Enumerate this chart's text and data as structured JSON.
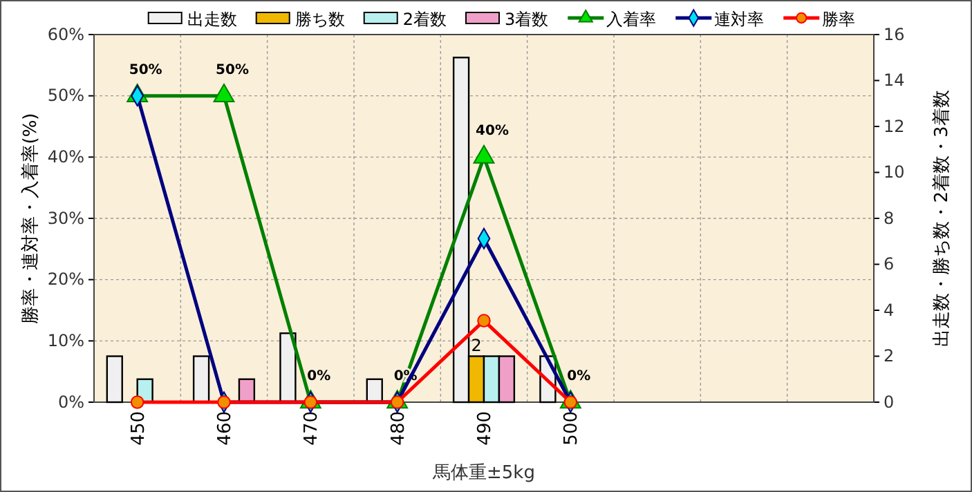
{
  "chart_data": {
    "type": "bar",
    "xlabel": "馬体重±5kg",
    "ylabel": "勝率・連対率・入着率(%)",
    "y2label": "出走数・勝ち数・2着数・3着数",
    "categories": [
      "450",
      "460",
      "470",
      "480",
      "490",
      "500",
      null,
      null,
      null
    ],
    "series": [
      {
        "name": "出走数",
        "axis": "y2",
        "color": "#f0f0f0",
        "values": [
          2,
          2,
          3,
          1,
          15,
          2,
          null,
          null,
          null
        ]
      },
      {
        "name": "勝ち数",
        "axis": "y2",
        "color": "#f0b800",
        "values": [
          0,
          0,
          0,
          0,
          2,
          0,
          null,
          null,
          null
        ],
        "value_labels": [
          null,
          null,
          null,
          null,
          "2",
          null,
          null,
          null,
          null
        ]
      },
      {
        "name": "2着数",
        "axis": "y2",
        "color": "#b8f0f0",
        "values": [
          1,
          0,
          0,
          0,
          2,
          0,
          null,
          null,
          null
        ]
      },
      {
        "name": "3着数",
        "axis": "y2",
        "color": "#f0a0c8",
        "values": [
          0,
          1,
          0,
          0,
          2,
          0,
          null,
          null,
          null
        ]
      },
      {
        "name": "入着率",
        "type": "line",
        "axis": "y",
        "color": "#008000",
        "marker": "triangle",
        "values": [
          50,
          50,
          0,
          0,
          40,
          0,
          null,
          null,
          null
        ],
        "value_labels": [
          "50%",
          "50%",
          "0%",
          "0%",
          "40%",
          "0%",
          null,
          null,
          null
        ]
      },
      {
        "name": "連対率",
        "type": "line",
        "axis": "y",
        "color": "#000080",
        "marker": "diamond",
        "values": [
          50,
          0,
          0,
          0,
          26.7,
          0,
          null,
          null,
          null
        ]
      },
      {
        "name": "勝率",
        "type": "line",
        "axis": "y",
        "color": "#ff0000",
        "marker": "circle",
        "values": [
          0,
          0,
          0,
          0,
          13.3,
          0,
          null,
          null,
          null
        ]
      }
    ],
    "ylim": [
      0,
      60
    ],
    "yticks": [
      {
        "value": 0,
        "label": "0%"
      },
      {
        "value": 10,
        "label": "10%"
      },
      {
        "value": 20,
        "label": "20%"
      },
      {
        "value": 30,
        "label": "30%"
      },
      {
        "value": 40,
        "label": "40%"
      },
      {
        "value": 50,
        "label": "50%"
      },
      {
        "value": 60,
        "label": "60%"
      }
    ],
    "y2lim": [
      0,
      16
    ],
    "y2ticks": [
      0,
      2,
      4,
      6,
      8,
      10,
      12,
      14,
      16
    ],
    "grid": true,
    "legend": "top"
  }
}
